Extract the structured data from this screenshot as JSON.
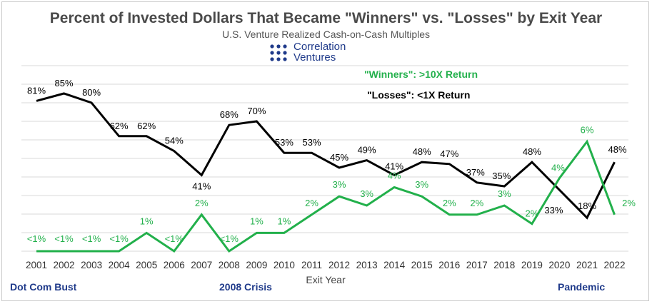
{
  "header": {
    "title": "Percent of Invested Dollars That Became \"Winners\" vs. \"Losses\" by Exit Year",
    "subtitle": "U.S. Venture Realized Cash-on-Cash Multiples"
  },
  "logo": {
    "line1": "Correlation",
    "line2": "Ventures",
    "color": "#1f3a8a"
  },
  "legend": {
    "winners": "\"Winners\": >10X Return",
    "losses": "\"Losses\": <1X Return"
  },
  "events": {
    "dotcom": "Dot Com Bust",
    "crisis": "2008 Crisis",
    "pandemic": "Pandemic"
  },
  "chart_data": {
    "type": "line",
    "xlabel": "Exit Year",
    "ylabel": "",
    "ylim": [
      0,
      100
    ],
    "grid": true,
    "legend_placement": "top-right",
    "colors": {
      "winners": "#22b04b",
      "losses": "#000000"
    },
    "x": [
      "2001",
      "2002",
      "2003",
      "2004",
      "2005",
      "2006",
      "2007",
      "2008",
      "2009",
      "2010",
      "2011",
      "2012",
      "2013",
      "2014",
      "2015",
      "2016",
      "2017",
      "2018",
      "2019",
      "2020",
      "2021",
      "2022"
    ],
    "series": [
      {
        "key": "losses",
        "name": "\"Losses\": <1X Return",
        "values": [
          81,
          85,
          80,
          62,
          62,
          54,
          41,
          68,
          70,
          53,
          53,
          45,
          49,
          41,
          48,
          47,
          37,
          35,
          48,
          33,
          18,
          48
        ],
        "labels": [
          "81%",
          "85%",
          "80%",
          "62%",
          "62%",
          "54%",
          "41%",
          "68%",
          "70%",
          "53%",
          "53%",
          "45%",
          "49%",
          "41%",
          "48%",
          "47%",
          "37%",
          "35%",
          "48%",
          "33%",
          "18%",
          "48%"
        ]
      },
      {
        "key": "winners",
        "name": "\"Winners\": >10X Return",
        "values": [
          0,
          0,
          0,
          0,
          1,
          0,
          2,
          0,
          1,
          1,
          2,
          3,
          2.5,
          3.5,
          3,
          2,
          2,
          2.5,
          1.5,
          4,
          6,
          2
        ],
        "labels": [
          "<1%",
          "<1%",
          "<1%",
          "<1%",
          "1%",
          "<1%",
          "2%",
          "<1%",
          "1%",
          "1%",
          "2%",
          "3%",
          "3%",
          "4%",
          "3%",
          "2%",
          "2%",
          "3%",
          "2%",
          "4%",
          "6%",
          "2%"
        ]
      }
    ]
  }
}
